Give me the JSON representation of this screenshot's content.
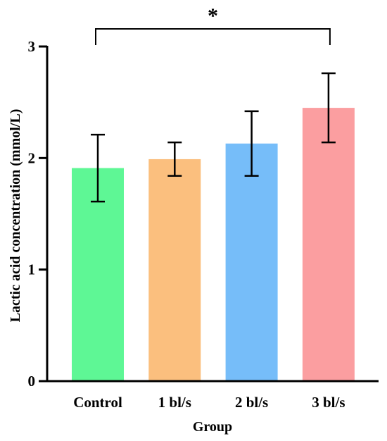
{
  "chart_data": {
    "type": "bar",
    "title": "",
    "xlabel": "Group",
    "ylabel": "Lactic acid concentration (mmol/L)",
    "categories": [
      "Control",
      "1 bl/s",
      "2 bl/s",
      "3 bl/s"
    ],
    "values": [
      1.91,
      1.99,
      2.13,
      2.45
    ],
    "error": [
      0.3,
      0.15,
      0.29,
      0.31
    ],
    "colors": [
      "#5ef795",
      "#fbbf7e",
      "#76bdf9",
      "#fb9ea0"
    ],
    "ylim": [
      0,
      3
    ],
    "yticks": [
      "0",
      "1",
      "2",
      "3"
    ],
    "grid": false,
    "legend": "none",
    "significance": {
      "label": "*",
      "from": "Control",
      "to": "3 bl/s"
    }
  }
}
